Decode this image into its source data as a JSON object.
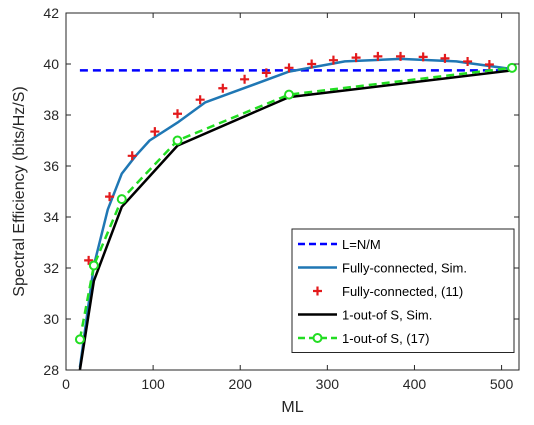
{
  "chart_data": {
    "type": "line",
    "xlabel": "ML",
    "ylabel": "Spectral Efficiency (bits/Hz/S)",
    "xlim": [
      0,
      520
    ],
    "ylim": [
      28,
      42
    ],
    "xticks": [
      0,
      100,
      200,
      300,
      400,
      500
    ],
    "yticks": [
      28,
      30,
      32,
      34,
      36,
      38,
      40,
      42
    ],
    "grid": false,
    "legend_position": "bottom-right",
    "series": [
      {
        "name": "L=N/M",
        "style": "dashed",
        "color": "#0000ff",
        "marker": "none",
        "x": [
          16,
          512
        ],
        "y": [
          39.75,
          39.75
        ]
      },
      {
        "name": "Fully-connected, Sim.",
        "style": "solid",
        "color": "#1f77b4",
        "marker": "none",
        "x": [
          16,
          32,
          48,
          64,
          80,
          96,
          128,
          160,
          192,
          256,
          320,
          384,
          448,
          512
        ],
        "y": [
          28.1,
          32.1,
          34.3,
          35.7,
          36.4,
          37.0,
          37.7,
          38.5,
          38.9,
          39.7,
          40.1,
          40.2,
          40.1,
          39.8
        ]
      },
      {
        "name": "Fully-connected, (11)",
        "style": "none",
        "color": "#e31a1c",
        "marker": "plus",
        "x": [
          26,
          50,
          76,
          102,
          128,
          154,
          180,
          205,
          230,
          256,
          282,
          307,
          333,
          358,
          384,
          410,
          435,
          461,
          486,
          512
        ],
        "y": [
          32.3,
          34.8,
          36.4,
          37.35,
          38.05,
          38.6,
          39.05,
          39.4,
          39.65,
          39.85,
          40.0,
          40.15,
          40.25,
          40.3,
          40.3,
          40.28,
          40.22,
          40.1,
          39.98,
          39.85
        ]
      },
      {
        "name": "1-out-of S, Sim.",
        "style": "solid",
        "color": "#000000",
        "marker": "none",
        "x": [
          16,
          32,
          64,
          128,
          256,
          512
        ],
        "y": [
          28.0,
          31.5,
          34.4,
          36.8,
          38.7,
          39.75
        ]
      },
      {
        "name": "1-out-of S, (17)",
        "style": "dashed",
        "color": "#22dd22",
        "marker": "circle",
        "x": [
          16,
          32,
          64,
          128,
          256,
          512
        ],
        "y": [
          29.2,
          32.1,
          34.7,
          37.0,
          38.8,
          39.85
        ]
      }
    ]
  }
}
